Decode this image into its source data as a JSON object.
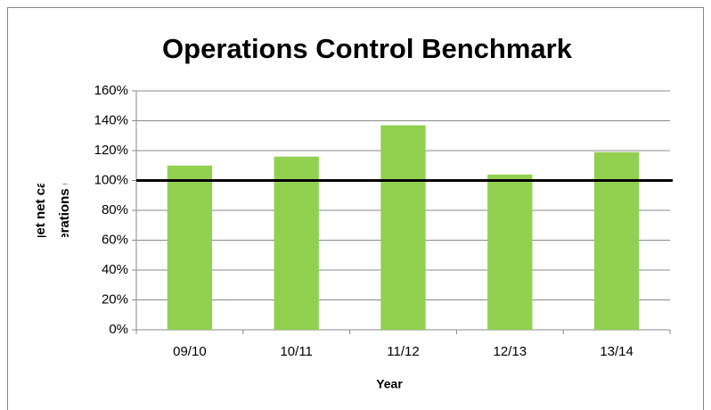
{
  "chart_data": {
    "type": "bar",
    "title": "Operations Control Benchmark",
    "xlabel": "Year",
    "ylabel": "Actual / budget net cash flow from operations (%)",
    "categories": [
      "09/10",
      "10/11",
      "11/12",
      "12/13",
      "13/14"
    ],
    "values": [
      110,
      116,
      137,
      104,
      119
    ],
    "color": "#92d050",
    "reference_line": 100,
    "ylim": [
      0,
      160
    ],
    "yticks": [
      {
        "value": 0,
        "label": "0%"
      },
      {
        "value": 20,
        "label": "20%"
      },
      {
        "value": 40,
        "label": "40%"
      },
      {
        "value": 60,
        "label": "60%"
      },
      {
        "value": 80,
        "label": "80%"
      },
      {
        "value": 100,
        "label": "100%"
      },
      {
        "value": 120,
        "label": "120%"
      },
      {
        "value": 140,
        "label": "140%"
      },
      {
        "value": 160,
        "label": "160%"
      }
    ],
    "grid": true
  }
}
